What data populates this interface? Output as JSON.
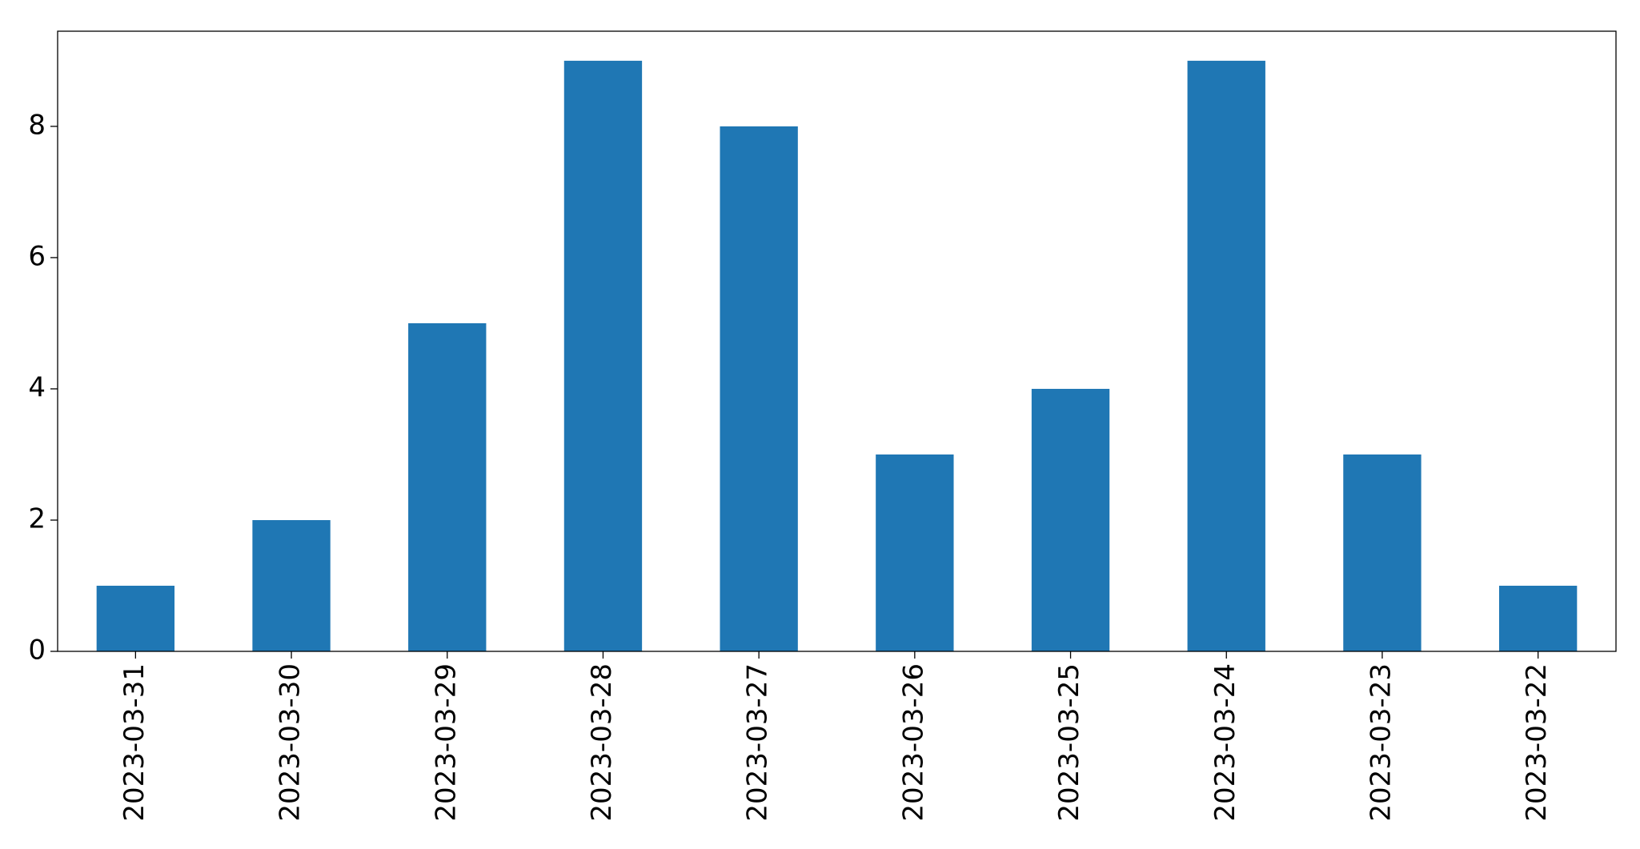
{
  "chart_data": {
    "type": "bar",
    "categories": [
      "2023-03-31",
      "2023-03-30",
      "2023-03-29",
      "2023-03-28",
      "2023-03-27",
      "2023-03-26",
      "2023-03-25",
      "2023-03-24",
      "2023-03-23",
      "2023-03-22"
    ],
    "values": [
      1,
      2,
      5,
      9,
      8,
      3,
      4,
      9,
      3,
      1
    ],
    "color": "#1f77b4",
    "ylim": [
      0,
      9.45
    ],
    "yticks": [
      0,
      2,
      4,
      6,
      8
    ],
    "grid": false
  }
}
